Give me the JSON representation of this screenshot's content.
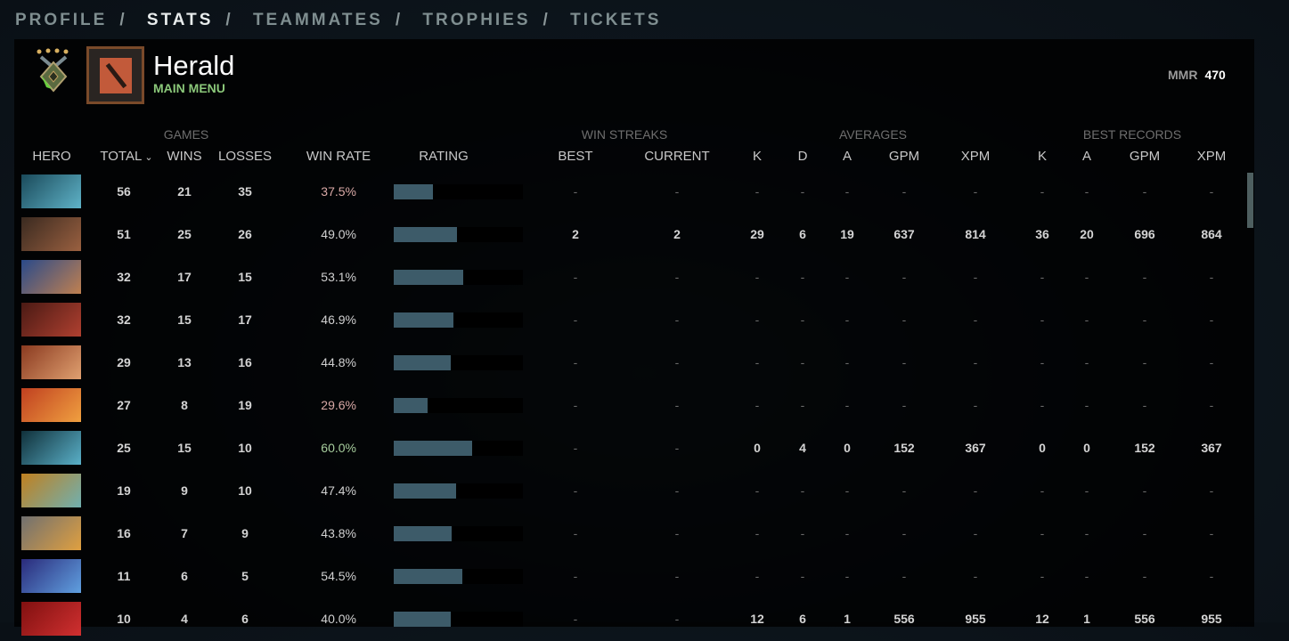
{
  "nav": {
    "items": [
      "PROFILE",
      "STATS",
      "TEAMMATES",
      "TROPHIES",
      "TICKETS"
    ],
    "active": "STATS",
    "separator": "/"
  },
  "profile": {
    "rank_name": "Herald",
    "subtitle": "MAIN MENU",
    "mmr_label": "MMR",
    "mmr_value": "470",
    "rank_stars": 4
  },
  "table": {
    "groups": {
      "games": "GAMES",
      "win_streaks": "WIN STREAKS",
      "averages": "AVERAGES",
      "best_records": "BEST RECORDS"
    },
    "headers": {
      "hero": "HERO",
      "total": "TOTAL",
      "wins": "WINS",
      "losses": "LOSSES",
      "win_rate": "WIN RATE",
      "rating": "RATING",
      "best": "BEST",
      "current": "CURRENT",
      "avg_k": "K",
      "avg_d": "D",
      "avg_a": "A",
      "avg_gpm": "GPM",
      "avg_xpm": "XPM",
      "best_k": "K",
      "best_a": "A",
      "best_gpm": "GPM",
      "best_xpm": "XPM"
    },
    "sort_icon": "chevron-down-icon",
    "colors": {
      "low": "#d9a9a6",
      "mid": "#d0d0d0",
      "high": "#a6cc9c",
      "bar": "#3d5b69"
    },
    "rows": [
      {
        "portrait": [
          "#1a4a5a",
          "#5fb3c8"
        ],
        "total": "56",
        "wins": "21",
        "losses": "35",
        "win_rate": "37.5%",
        "tone": "low",
        "rating": 0.3,
        "best": "-",
        "current": "-",
        "avg_k": "-",
        "avg_d": "-",
        "avg_a": "-",
        "avg_gpm": "-",
        "avg_xpm": "-",
        "best_k": "-",
        "best_a": "-",
        "best_gpm": "-",
        "best_xpm": "-"
      },
      {
        "portrait": [
          "#3a2a20",
          "#9a6040"
        ],
        "total": "51",
        "wins": "25",
        "losses": "26",
        "win_rate": "49.0%",
        "tone": "mid",
        "rating": 0.49,
        "best": "2",
        "current": "2",
        "avg_k": "29",
        "avg_d": "6",
        "avg_a": "19",
        "avg_gpm": "637",
        "avg_xpm": "814",
        "best_k": "36",
        "best_a": "20",
        "best_gpm": "696",
        "best_xpm": "864"
      },
      {
        "portrait": [
          "#2a4a8a",
          "#c08050"
        ],
        "total": "32",
        "wins": "17",
        "losses": "15",
        "win_rate": "53.1%",
        "tone": "mid",
        "rating": 0.54,
        "best": "-",
        "current": "-",
        "avg_k": "-",
        "avg_d": "-",
        "avg_a": "-",
        "avg_gpm": "-",
        "avg_xpm": "-",
        "best_k": "-",
        "best_a": "-",
        "best_gpm": "-",
        "best_xpm": "-"
      },
      {
        "portrait": [
          "#4a1a14",
          "#b04030"
        ],
        "total": "32",
        "wins": "15",
        "losses": "17",
        "win_rate": "46.9%",
        "tone": "mid",
        "rating": 0.46,
        "best": "-",
        "current": "-",
        "avg_k": "-",
        "avg_d": "-",
        "avg_a": "-",
        "avg_gpm": "-",
        "avg_xpm": "-",
        "best_k": "-",
        "best_a": "-",
        "best_gpm": "-",
        "best_xpm": "-"
      },
      {
        "portrait": [
          "#8a3a20",
          "#e0a070"
        ],
        "total": "29",
        "wins": "13",
        "losses": "16",
        "win_rate": "44.8%",
        "tone": "mid",
        "rating": 0.44,
        "best": "-",
        "current": "-",
        "avg_k": "-",
        "avg_d": "-",
        "avg_a": "-",
        "avg_gpm": "-",
        "avg_xpm": "-",
        "best_k": "-",
        "best_a": "-",
        "best_gpm": "-",
        "best_xpm": "-"
      },
      {
        "portrait": [
          "#c04020",
          "#f0a040"
        ],
        "total": "27",
        "wins": "8",
        "losses": "19",
        "win_rate": "29.6%",
        "tone": "low",
        "rating": 0.26,
        "best": "-",
        "current": "-",
        "avg_k": "-",
        "avg_d": "-",
        "avg_a": "-",
        "avg_gpm": "-",
        "avg_xpm": "-",
        "best_k": "-",
        "best_a": "-",
        "best_gpm": "-",
        "best_xpm": "-"
      },
      {
        "portrait": [
          "#10303a",
          "#5ab0c8"
        ],
        "total": "25",
        "wins": "15",
        "losses": "10",
        "win_rate": "60.0%",
        "tone": "high",
        "rating": 0.61,
        "best": "-",
        "current": "-",
        "avg_k": "0",
        "avg_d": "4",
        "avg_a": "0",
        "avg_gpm": "152",
        "avg_xpm": "367",
        "best_k": "0",
        "best_a": "0",
        "best_gpm": "152",
        "best_xpm": "367"
      },
      {
        "portrait": [
          "#c08020",
          "#70b0b0"
        ],
        "total": "19",
        "wins": "9",
        "losses": "10",
        "win_rate": "47.4%",
        "tone": "mid",
        "rating": 0.48,
        "best": "-",
        "current": "-",
        "avg_k": "-",
        "avg_d": "-",
        "avg_a": "-",
        "avg_gpm": "-",
        "avg_xpm": "-",
        "best_k": "-",
        "best_a": "-",
        "best_gpm": "-",
        "best_xpm": "-"
      },
      {
        "portrait": [
          "#707070",
          "#e0a040"
        ],
        "total": "16",
        "wins": "7",
        "losses": "9",
        "win_rate": "43.8%",
        "tone": "mid",
        "rating": 0.45,
        "best": "-",
        "current": "-",
        "avg_k": "-",
        "avg_d": "-",
        "avg_a": "-",
        "avg_gpm": "-",
        "avg_xpm": "-",
        "best_k": "-",
        "best_a": "-",
        "best_gpm": "-",
        "best_xpm": "-"
      },
      {
        "portrait": [
          "#2a2a7a",
          "#60a0e0"
        ],
        "total": "11",
        "wins": "6",
        "losses": "5",
        "win_rate": "54.5%",
        "tone": "mid",
        "rating": 0.53,
        "best": "-",
        "current": "-",
        "avg_k": "-",
        "avg_d": "-",
        "avg_a": "-",
        "avg_gpm": "-",
        "avg_xpm": "-",
        "best_k": "-",
        "best_a": "-",
        "best_gpm": "-",
        "best_xpm": "-"
      },
      {
        "portrait": [
          "#801010",
          "#d03030"
        ],
        "total": "10",
        "wins": "4",
        "losses": "6",
        "win_rate": "40.0%",
        "tone": "mid",
        "rating": 0.44,
        "best": "-",
        "current": "-",
        "avg_k": "12",
        "avg_d": "6",
        "avg_a": "1",
        "avg_gpm": "556",
        "avg_xpm": "955",
        "best_k": "12",
        "best_a": "1",
        "best_gpm": "556",
        "best_xpm": "955"
      }
    ]
  }
}
